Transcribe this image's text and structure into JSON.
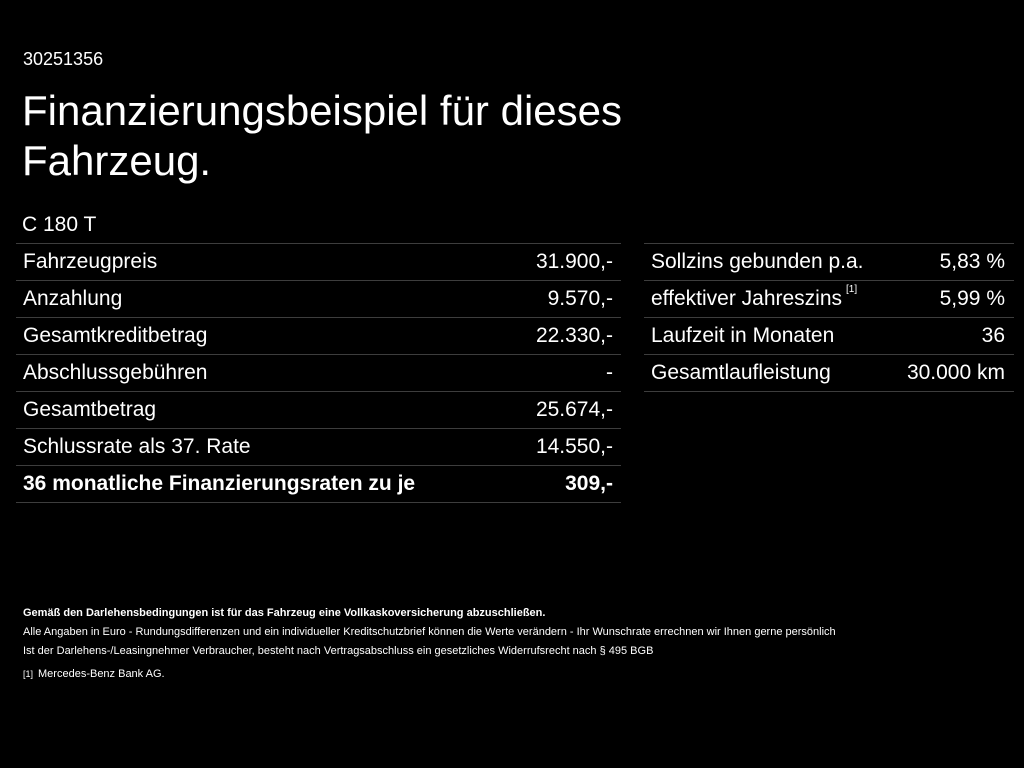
{
  "header": {
    "id_number": "30251356",
    "title": "Finanzierungsbeispiel für dieses Fahrzeug.",
    "model": "C 180 T"
  },
  "left_table": [
    {
      "label": "Fahrzeugpreis",
      "value": "31.900,-"
    },
    {
      "label": "Anzahlung",
      "value": "9.570,-"
    },
    {
      "label": "Gesamtkreditbetrag",
      "value": "22.330,-"
    },
    {
      "label": "Abschlussgebühren",
      "value": "-"
    },
    {
      "label": "Gesamtbetrag",
      "value": "25.674,-"
    },
    {
      "label": "Schlussrate als 37. Rate",
      "value": "14.550,-"
    },
    {
      "label": "36 monatliche Finanzierungsraten zu je",
      "value": "309,-"
    }
  ],
  "right_table": [
    {
      "label": "Sollzins gebunden p.a.",
      "value": "5,83 %"
    },
    {
      "label": "effektiver Jahreszins",
      "footnote": "[1]",
      "value": "5,99 %"
    },
    {
      "label": "Laufzeit in Monaten",
      "value": "36"
    },
    {
      "label": "Gesamtlaufleistung",
      "value": "30.000 km"
    }
  ],
  "footnotes": {
    "insurance_note": "Gemäß den Darlehensbedingungen ist für das Fahrzeug eine Vollkaskoversicherung abzuschließen.",
    "euro_note": "Alle Angaben in Euro - Rundungsdifferenzen und ein individueller Kreditschutzbrief können die Werte verändern - Ihr Wunschrate errechnen wir Ihnen gerne persönlich",
    "withdrawal_note": "Ist der Darlehens-/Leasingnehmer Verbraucher, besteht nach Vertragsabschluss ein gesetzliches Widerrufsrecht nach § 495 BGB",
    "ref_marker": "[1]",
    "ref_text": "Mercedes-Benz Bank AG."
  },
  "colors": {
    "background": "#000000",
    "text": "#ffffff",
    "divider": "#3d3d3d"
  }
}
